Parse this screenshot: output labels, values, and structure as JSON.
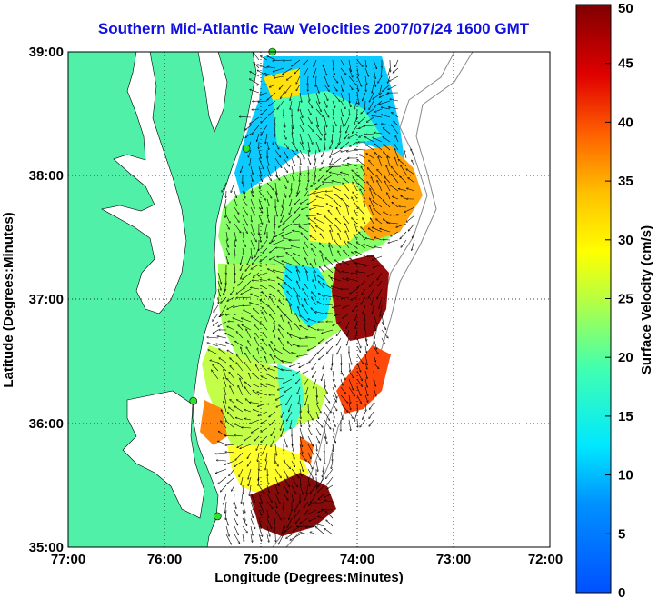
{
  "title": "Southern Mid-Atlantic Raw Velocities 2007/07/24 1600 GMT",
  "axes": {
    "xlabel": "Longitude (Degrees:Minutes)",
    "ylabel": "Latitude (Degrees:Minutes)",
    "x_ticks": [
      "77:00",
      "76:00",
      "75:00",
      "74:00",
      "73:00",
      "72:00"
    ],
    "y_ticks": [
      "39:00",
      "38:00",
      "37:00",
      "36:00",
      "35:00"
    ],
    "x_range": [
      -77,
      -72
    ],
    "y_range": [
      35,
      39
    ],
    "grid": true
  },
  "colorbar": {
    "label": "Surface Velocity (cm/s)",
    "ticks": [
      "0",
      "5",
      "10",
      "15",
      "20",
      "25",
      "30",
      "35",
      "40",
      "45",
      "50"
    ],
    "range": [
      0,
      50
    ]
  },
  "colors": {
    "land": "#50f0a8",
    "title": "#1010e0",
    "station": "#30e030"
  },
  "stations": [
    {
      "lon": -74.88,
      "lat": 39.0
    },
    {
      "lon": -75.15,
      "lat": 38.22
    },
    {
      "lon": -75.7,
      "lat": 36.18
    },
    {
      "lon": -75.45,
      "lat": 35.25
    }
  ]
}
